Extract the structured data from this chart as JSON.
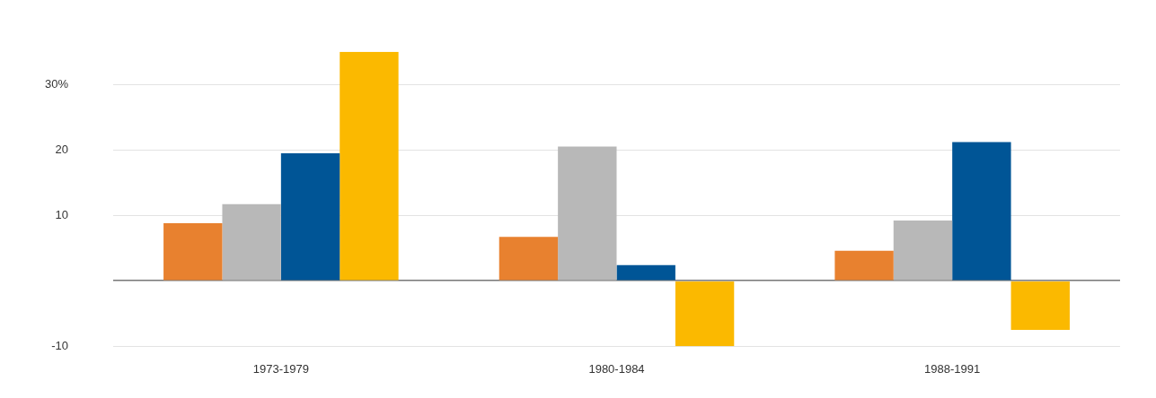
{
  "chart_data": {
    "type": "bar",
    "categories": [
      "1973-1979",
      "1980-1984",
      "1988-1991"
    ],
    "series": [
      {
        "color": "#e8812f",
        "values": [
          8.8,
          6.7,
          4.6
        ]
      },
      {
        "color": "#b8b8b8",
        "values": [
          11.7,
          20.5,
          9.2
        ]
      },
      {
        "color": "#005596",
        "values": [
          19.5,
          2.4,
          21.2
        ]
      },
      {
        "color": "#fbb900",
        "values": [
          35.0,
          -10.0,
          -7.5
        ]
      }
    ],
    "ylim": [
      -10,
      35
    ],
    "yticks": [
      {
        "value": -10,
        "label": "-10"
      },
      {
        "value": 0,
        "label": null
      },
      10,
      20,
      {
        "value": 30,
        "label": "30%"
      }
    ],
    "grid": "y",
    "legend": false
  }
}
